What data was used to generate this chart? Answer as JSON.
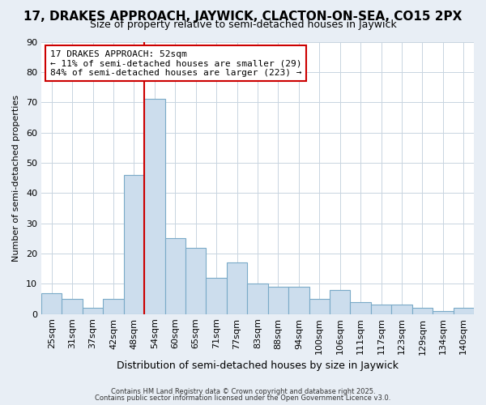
{
  "title1": "17, DRAKES APPROACH, JAYWICK, CLACTON-ON-SEA, CO15 2PX",
  "title2": "Size of property relative to semi-detached houses in Jaywick",
  "xlabel": "Distribution of semi-detached houses by size in Jaywick",
  "ylabel": "Number of semi-detached properties",
  "categories": [
    "25sqm",
    "31sqm",
    "37sqm",
    "42sqm",
    "48sqm",
    "54sqm",
    "60sqm",
    "65sqm",
    "71sqm",
    "77sqm",
    "83sqm",
    "88sqm",
    "94sqm",
    "100sqm",
    "106sqm",
    "111sqm",
    "117sqm",
    "123sqm",
    "129sqm",
    "134sqm",
    "140sqm"
  ],
  "values": [
    7,
    5,
    2,
    5,
    46,
    71,
    25,
    22,
    12,
    17,
    10,
    9,
    9,
    5,
    8,
    4,
    3,
    3,
    2,
    1,
    2
  ],
  "bar_color": "#ccdded",
  "bar_edge_color": "#7aaac8",
  "red_line_index": 5,
  "annotation_title": "17 DRAKES APPROACH: 52sqm",
  "annotation_line1": "← 11% of semi-detached houses are smaller (29)",
  "annotation_line2": "84% of semi-detached houses are larger (223) →",
  "annotation_box_facecolor": "#ffffff",
  "annotation_box_edgecolor": "#cc0000",
  "footer1": "Contains HM Land Registry data © Crown copyright and database right 2025.",
  "footer2": "Contains public sector information licensed under the Open Government Licence v3.0.",
  "bg_color": "#e8eef5",
  "plot_bg_color": "#ffffff",
  "grid_color": "#c8d4e0",
  "ylim": [
    0,
    90
  ],
  "yticks": [
    0,
    10,
    20,
    30,
    40,
    50,
    60,
    70,
    80,
    90
  ],
  "title1_fontsize": 11,
  "title2_fontsize": 9,
  "xlabel_fontsize": 9,
  "ylabel_fontsize": 8,
  "tick_fontsize": 8,
  "ann_fontsize": 8,
  "footer_fontsize": 6
}
